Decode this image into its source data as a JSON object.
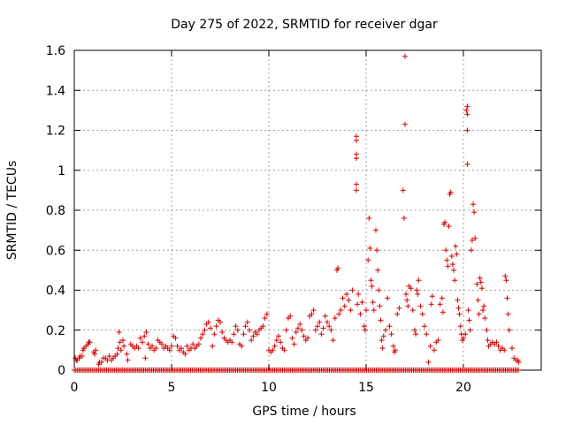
{
  "chart_data": {
    "type": "scatter",
    "title": "Day 275 of 2022, SRMTID for receiver dgar",
    "xlabel": "GPS time / hours",
    "ylabel": "SRMTID / TECUs",
    "xlim": [
      0,
      24
    ],
    "ylim": [
      0,
      1.6
    ],
    "x_ticks": [
      0,
      5,
      10,
      15,
      20
    ],
    "x_tick_labels": [
      "0",
      "5",
      "10",
      "15",
      "20"
    ],
    "y_ticks": [
      0,
      0.2,
      0.4,
      0.6,
      0.8,
      1,
      1.2,
      1.4,
      1.6
    ],
    "y_tick_labels": [
      "0",
      "0.2",
      "0.4",
      "0.6",
      "0.8",
      "1",
      "1.2",
      "1.4",
      "1.6"
    ],
    "grid": true,
    "marker": "+",
    "color": "#d40000",
    "baseline": {
      "y": 0,
      "x_start": 0,
      "x_end": 22.9,
      "step": 0.083
    },
    "series": [
      {
        "name": "SRMTID",
        "points": [
          [
            0.05,
            0.06
          ],
          [
            0.1,
            0.05
          ],
          [
            0.15,
            0.05
          ],
          [
            0.25,
            0.06
          ],
          [
            0.3,
            0.07
          ],
          [
            0.4,
            0.07
          ],
          [
            0.45,
            0.1
          ],
          [
            0.5,
            0.11
          ],
          [
            0.6,
            0.12
          ],
          [
            0.7,
            0.13
          ],
          [
            0.75,
            0.14
          ],
          [
            0.8,
            0.14
          ],
          [
            1.0,
            0.09
          ],
          [
            1.05,
            0.08
          ],
          [
            1.1,
            0.1
          ],
          [
            1.25,
            0.03
          ],
          [
            1.3,
            0.04
          ],
          [
            1.4,
            0.04
          ],
          [
            1.5,
            0.06
          ],
          [
            1.6,
            0.06
          ],
          [
            1.7,
            0.05
          ],
          [
            1.8,
            0.07
          ],
          [
            1.9,
            0.05
          ],
          [
            2.0,
            0.06
          ],
          [
            2.1,
            0.07
          ],
          [
            2.2,
            0.08
          ],
          [
            2.25,
            0.11
          ],
          [
            2.3,
            0.19
          ],
          [
            2.35,
            0.14
          ],
          [
            2.4,
            0.1
          ],
          [
            2.5,
            0.15
          ],
          [
            2.55,
            0.12
          ],
          [
            2.7,
            0.08
          ],
          [
            2.75,
            0.05
          ],
          [
            2.9,
            0.13
          ],
          [
            3.0,
            0.12
          ],
          [
            3.1,
            0.11
          ],
          [
            3.2,
            0.12
          ],
          [
            3.3,
            0.11
          ],
          [
            3.4,
            0.16
          ],
          [
            3.5,
            0.14
          ],
          [
            3.6,
            0.17
          ],
          [
            3.65,
            0.06
          ],
          [
            3.7,
            0.19
          ],
          [
            3.8,
            0.13
          ],
          [
            3.9,
            0.11
          ],
          [
            4.0,
            0.12
          ],
          [
            4.1,
            0.1
          ],
          [
            4.2,
            0.11
          ],
          [
            4.3,
            0.15
          ],
          [
            4.4,
            0.14
          ],
          [
            4.5,
            0.13
          ],
          [
            4.6,
            0.11
          ],
          [
            4.7,
            0.12
          ],
          [
            4.8,
            0.11
          ],
          [
            4.9,
            0.1
          ],
          [
            5.0,
            0.12
          ],
          [
            5.1,
            0.17
          ],
          [
            5.2,
            0.16
          ],
          [
            5.3,
            0.12
          ],
          [
            5.4,
            0.1
          ],
          [
            5.5,
            0.11
          ],
          [
            5.6,
            0.09
          ],
          [
            5.7,
            0.08
          ],
          [
            5.8,
            0.12
          ],
          [
            5.9,
            0.1
          ],
          [
            6.0,
            0.11
          ],
          [
            6.1,
            0.13
          ],
          [
            6.2,
            0.11
          ],
          [
            6.3,
            0.12
          ],
          [
            6.4,
            0.13
          ],
          [
            6.5,
            0.16
          ],
          [
            6.6,
            0.18
          ],
          [
            6.7,
            0.2
          ],
          [
            6.8,
            0.23
          ],
          [
            6.9,
            0.24
          ],
          [
            7.0,
            0.21
          ],
          [
            7.1,
            0.12
          ],
          [
            7.2,
            0.18
          ],
          [
            7.3,
            0.22
          ],
          [
            7.4,
            0.25
          ],
          [
            7.5,
            0.24
          ],
          [
            7.6,
            0.19
          ],
          [
            7.7,
            0.16
          ],
          [
            7.8,
            0.15
          ],
          [
            7.9,
            0.14
          ],
          [
            8.0,
            0.15
          ],
          [
            8.1,
            0.14
          ],
          [
            8.2,
            0.18
          ],
          [
            8.3,
            0.22
          ],
          [
            8.4,
            0.2
          ],
          [
            8.5,
            0.13
          ],
          [
            8.6,
            0.12
          ],
          [
            8.7,
            0.18
          ],
          [
            8.8,
            0.22
          ],
          [
            8.9,
            0.24
          ],
          [
            9.0,
            0.2
          ],
          [
            9.1,
            0.15
          ],
          [
            9.2,
            0.17
          ],
          [
            9.3,
            0.19
          ],
          [
            9.4,
            0.18
          ],
          [
            9.5,
            0.2
          ],
          [
            9.6,
            0.21
          ],
          [
            9.7,
            0.22
          ],
          [
            9.8,
            0.26
          ],
          [
            9.9,
            0.28
          ],
          [
            10.0,
            0.1
          ],
          [
            10.1,
            0.09
          ],
          [
            10.2,
            0.1
          ],
          [
            10.3,
            0.12
          ],
          [
            10.4,
            0.15
          ],
          [
            10.5,
            0.17
          ],
          [
            10.6,
            0.14
          ],
          [
            10.7,
            0.11
          ],
          [
            10.8,
            0.1
          ],
          [
            10.9,
            0.2
          ],
          [
            11.0,
            0.26
          ],
          [
            11.1,
            0.27
          ],
          [
            11.2,
            0.16
          ],
          [
            11.3,
            0.13
          ],
          [
            11.4,
            0.19
          ],
          [
            11.5,
            0.21
          ],
          [
            11.6,
            0.23
          ],
          [
            11.7,
            0.2
          ],
          [
            11.8,
            0.17
          ],
          [
            11.9,
            0.15
          ],
          [
            12.0,
            0.16
          ],
          [
            12.1,
            0.27
          ],
          [
            12.2,
            0.28
          ],
          [
            12.3,
            0.3
          ],
          [
            12.4,
            0.2
          ],
          [
            12.5,
            0.22
          ],
          [
            12.6,
            0.24
          ],
          [
            12.7,
            0.18
          ],
          [
            12.8,
            0.21
          ],
          [
            12.9,
            0.27
          ],
          [
            13.0,
            0.24
          ],
          [
            13.1,
            0.22
          ],
          [
            13.2,
            0.2
          ],
          [
            13.3,
            0.15
          ],
          [
            13.4,
            0.26
          ],
          [
            13.5,
            0.5
          ],
          [
            13.55,
            0.51
          ],
          [
            13.6,
            0.28
          ],
          [
            13.7,
            0.3
          ],
          [
            13.8,
            0.36
          ],
          [
            13.9,
            0.32
          ],
          [
            14.0,
            0.38
          ],
          [
            14.1,
            0.35
          ],
          [
            14.2,
            0.3
          ],
          [
            14.3,
            0.4
          ],
          [
            14.5,
            1.17
          ],
          [
            14.5,
            1.15
          ],
          [
            14.5,
            1.08
          ],
          [
            14.5,
            1.06
          ],
          [
            14.5,
            0.93
          ],
          [
            14.5,
            0.9
          ],
          [
            14.55,
            0.33
          ],
          [
            14.6,
            0.38
          ],
          [
            14.7,
            0.28
          ],
          [
            14.8,
            0.34
          ],
          [
            14.9,
            0.22
          ],
          [
            14.95,
            0.2
          ],
          [
            15.0,
            0.3
          ],
          [
            15.1,
            0.55
          ],
          [
            15.15,
            0.76
          ],
          [
            15.2,
            0.61
          ],
          [
            15.25,
            0.45
          ],
          [
            15.3,
            0.42
          ],
          [
            15.35,
            0.34
          ],
          [
            15.4,
            0.3
          ],
          [
            15.5,
            0.7
          ],
          [
            15.55,
            0.6
          ],
          [
            15.6,
            0.5
          ],
          [
            15.65,
            0.4
          ],
          [
            15.7,
            0.32
          ],
          [
            15.75,
            0.25
          ],
          [
            15.8,
            0.15
          ],
          [
            15.85,
            0.11
          ],
          [
            15.9,
            0.17
          ],
          [
            16.0,
            0.2
          ],
          [
            16.1,
            0.36
          ],
          [
            16.2,
            0.22
          ],
          [
            16.3,
            0.18
          ],
          [
            16.4,
            0.12
          ],
          [
            16.45,
            0.09
          ],
          [
            16.5,
            0.1
          ],
          [
            16.6,
            0.28
          ],
          [
            16.7,
            0.31
          ],
          [
            16.9,
            0.9
          ],
          [
            16.95,
            0.76
          ],
          [
            17.0,
            1.57
          ],
          [
            17.0,
            1.23
          ],
          [
            17.05,
            0.38
          ],
          [
            17.1,
            0.35
          ],
          [
            17.15,
            0.32
          ],
          [
            17.2,
            0.42
          ],
          [
            17.3,
            0.41
          ],
          [
            17.4,
            0.3
          ],
          [
            17.5,
            0.2
          ],
          [
            17.55,
            0.18
          ],
          [
            17.6,
            0.4
          ],
          [
            17.65,
            0.38
          ],
          [
            17.7,
            0.45
          ],
          [
            17.8,
            0.32
          ],
          [
            17.9,
            0.28
          ],
          [
            18.0,
            0.22
          ],
          [
            18.1,
            0.18
          ],
          [
            18.2,
            0.04
          ],
          [
            18.3,
            0.12
          ],
          [
            18.35,
            0.33
          ],
          [
            18.4,
            0.37
          ],
          [
            18.5,
            0.1
          ],
          [
            18.6,
            0.14
          ],
          [
            18.7,
            0.15
          ],
          [
            18.8,
            0.33
          ],
          [
            18.9,
            0.36
          ],
          [
            18.95,
            0.29
          ],
          [
            19.0,
            0.73
          ],
          [
            19.05,
            0.74
          ],
          [
            19.1,
            0.6
          ],
          [
            19.15,
            0.55
          ],
          [
            19.2,
            0.52
          ],
          [
            19.25,
            0.72
          ],
          [
            19.3,
            0.88
          ],
          [
            19.35,
            0.89
          ],
          [
            19.4,
            0.57
          ],
          [
            19.45,
            0.53
          ],
          [
            19.5,
            0.5
          ],
          [
            19.55,
            0.45
          ],
          [
            19.6,
            0.62
          ],
          [
            19.65,
            0.58
          ],
          [
            19.7,
            0.35
          ],
          [
            19.75,
            0.31
          ],
          [
            19.8,
            0.28
          ],
          [
            19.85,
            0.22
          ],
          [
            19.9,
            0.18
          ],
          [
            19.95,
            0.15
          ],
          [
            20.0,
            0.16
          ],
          [
            20.1,
            0.18
          ],
          [
            20.15,
            1.3
          ],
          [
            20.2,
            1.32
          ],
          [
            20.2,
            1.28
          ],
          [
            20.2,
            1.2
          ],
          [
            20.2,
            1.03
          ],
          [
            20.25,
            0.3
          ],
          [
            20.3,
            0.25
          ],
          [
            20.35,
            0.2
          ],
          [
            20.4,
            0.6
          ],
          [
            20.45,
            0.65
          ],
          [
            20.5,
            0.83
          ],
          [
            20.55,
            0.79
          ],
          [
            20.6,
            0.66
          ],
          [
            20.7,
            0.43
          ],
          [
            20.75,
            0.35
          ],
          [
            20.8,
            0.28
          ],
          [
            20.85,
            0.46
          ],
          [
            20.9,
            0.44
          ],
          [
            20.95,
            0.41
          ],
          [
            21.0,
            0.3
          ],
          [
            21.05,
            0.32
          ],
          [
            21.1,
            0.26
          ],
          [
            21.2,
            0.2
          ],
          [
            21.25,
            0.15
          ],
          [
            21.3,
            0.12
          ],
          [
            21.4,
            0.13
          ],
          [
            21.5,
            0.14
          ],
          [
            21.6,
            0.13
          ],
          [
            21.7,
            0.14
          ],
          [
            21.8,
            0.12
          ],
          [
            21.9,
            0.1
          ],
          [
            22.0,
            0.11
          ],
          [
            22.1,
            0.1
          ],
          [
            22.15,
            0.47
          ],
          [
            22.2,
            0.45
          ],
          [
            22.25,
            0.36
          ],
          [
            22.3,
            0.28
          ],
          [
            22.35,
            0.2
          ],
          [
            22.5,
            0.11
          ],
          [
            22.6,
            0.06
          ],
          [
            22.7,
            0.05
          ],
          [
            22.8,
            0.05
          ],
          [
            22.85,
            0.04
          ]
        ]
      }
    ]
  }
}
